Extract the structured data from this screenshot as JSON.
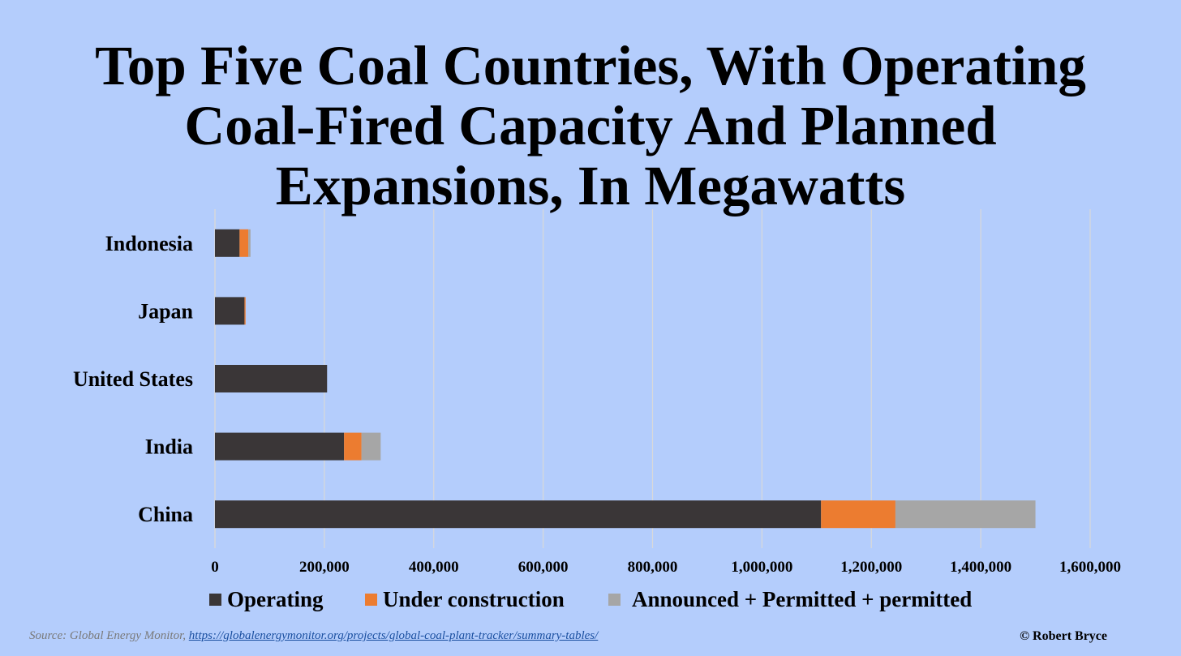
{
  "chart_data": {
    "type": "bar",
    "orientation": "horizontal",
    "stacked": true,
    "title_lines": [
      "Top Five Coal Countries, With Operating",
      "Coal-Fired Capacity And Planned",
      "Expansions, In Megawatts"
    ],
    "categories": [
      "Indonesia",
      "Japan",
      "United States",
      "India",
      "China"
    ],
    "series": [
      {
        "name": "Operating",
        "color": "#3a3637",
        "values": [
          45000,
          54000,
          205000,
          236000,
          1108000
        ]
      },
      {
        "name": "Under construction",
        "color": "#ec7c30",
        "values": [
          16000,
          2000,
          0,
          32000,
          136000
        ]
      },
      {
        "name": "Announced + Permitted + permitted",
        "color": "#a6a6a6",
        "values": [
          4000,
          0,
          0,
          35000,
          256000
        ]
      }
    ],
    "xlim": [
      0,
      1600000
    ],
    "xticks": [
      0,
      200000,
      400000,
      600000,
      800000,
      1000000,
      1200000,
      1400000,
      1600000
    ],
    "xtick_labels": [
      "0",
      "200,000",
      "400,000",
      "600,000",
      "800,000",
      "1,000,000",
      "1,200,000",
      "1,400,000",
      "1,600,000"
    ],
    "grid": true,
    "legend_position": "bottom"
  },
  "footer": {
    "source_prefix": "Source: Global Energy Monitor, ",
    "source_link": "https://globalenergymonitor.org/projects/global-coal-plant-tracker/summary-tables/",
    "copyright": "© Robert Bryce"
  }
}
